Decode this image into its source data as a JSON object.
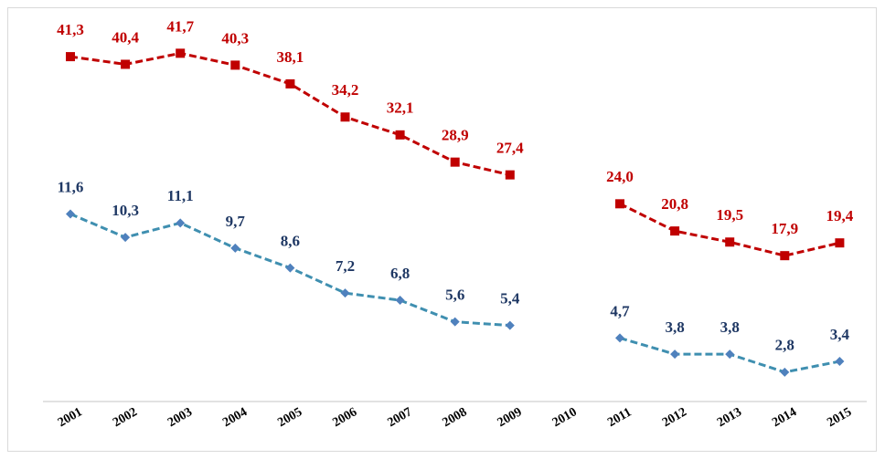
{
  "chart_data": {
    "type": "line",
    "categories": [
      "2001",
      "2002",
      "2003",
      "2004",
      "2005",
      "2006",
      "2007",
      "2008",
      "2009",
      "2010",
      "2011",
      "2012",
      "2013",
      "2014",
      "2015"
    ],
    "series": [
      {
        "color": "#c00000",
        "label_color": "#c00000",
        "marker": "square",
        "values": [
          41.3,
          40.4,
          41.7,
          40.3,
          38.1,
          34.2,
          32.1,
          28.9,
          27.4,
          null,
          24.0,
          20.8,
          19.5,
          17.9,
          19.4
        ],
        "value_labels": [
          "41,3",
          "40,4",
          "41,7",
          "40,3",
          "38,1",
          "34,2",
          "32,1",
          "28,9",
          "27,4",
          null,
          "24,0",
          "20,8",
          "19,5",
          "17,9",
          "19,4"
        ]
      },
      {
        "color": "#3f8fb0",
        "marker_color": "#4f81bd",
        "label_color": "#1f3864",
        "marker": "diamond",
        "values": [
          11.6,
          10.3,
          11.1,
          9.7,
          8.6,
          7.2,
          6.8,
          5.6,
          5.4,
          null,
          4.7,
          3.8,
          3.8,
          2.8,
          3.4
        ],
        "value_labels": [
          "11,6",
          "10,3",
          "11,1",
          "9,7",
          "8,6",
          "7,2",
          "6,8",
          "5,6",
          "5,4",
          null,
          "4,7",
          "3,8",
          "3,8",
          "2,8",
          "3,4"
        ]
      }
    ]
  }
}
